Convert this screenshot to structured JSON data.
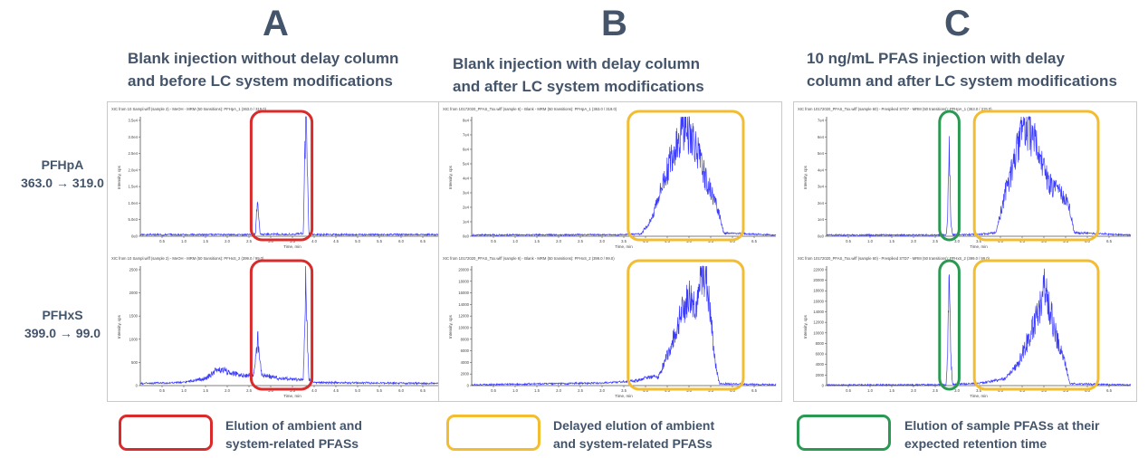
{
  "panels": [
    {
      "letter": "A",
      "heading": "Blank injection without delay column\nand before LC system modifications",
      "charts": [
        {
          "title": "XIC from 10 Sampl.wiff (sample 2) - MeOH - MRM (50 transitions): PFHpA_1 (363.0 / 319.0)",
          "ylabel": "Intensity, cps",
          "xlabel": "Time, min",
          "xticks": [
            "0.5",
            "1.0",
            "1.5",
            "2.0",
            "2.5",
            "3.0",
            "3.5",
            "4.0",
            "4.5",
            "5.0",
            "5.5",
            "6.0",
            "6.5"
          ],
          "yticks": [
            "0e0",
            "5.0e3",
            "1.0e4",
            "1.5e4",
            "2.0e4",
            "2.5e4",
            "3.0e4",
            "3.5e4"
          ]
        },
        {
          "title": "XIC from 10 Sampl.wiff (sample 2) - MeOH - MRM (50 transitions): PFHxS_2 (399.0 / 99.0)",
          "ylabel": "Intensity, cps",
          "xlabel": "Time, min",
          "xticks": [
            "0.5",
            "1.0",
            "1.5",
            "2.0",
            "2.5",
            "3.0",
            "3.5",
            "4.0",
            "4.5",
            "5.0",
            "5.5",
            "6.0",
            "6.5"
          ],
          "yticks": [
            "0",
            "500",
            "1000",
            "1500",
            "2000",
            "2500"
          ]
        }
      ]
    },
    {
      "letter": "B",
      "heading": "Blank injection with delay column\nand after LC system modifications",
      "charts": [
        {
          "title": "XIC from 10172020_PFAS_Tox.wiff (sample 6) - Blank - MRM (50 transitions): PFHpA_1 (363.0 / 319.0)",
          "ylabel": "Intensity, cps",
          "xlabel": "Time, min",
          "xticks": [
            "0.5",
            "1.0",
            "1.5",
            "2.0",
            "2.5",
            "3.0",
            "3.5",
            "4.0",
            "4.5",
            "5.0",
            "5.5",
            "6.0",
            "6.5"
          ],
          "yticks": [
            "0e0",
            "1e4",
            "2e4",
            "3e4",
            "4e4",
            "5e4",
            "6e4",
            "7e4",
            "8e4"
          ]
        },
        {
          "title": "XIC from 10172020_PFAS_Tox.wiff (sample 6) - Blank - MRM (50 transitions): PFHxS_2 (399.0 / 99.0)",
          "ylabel": "Intensity, cps",
          "xlabel": "Time, min",
          "xticks": [
            "0.5",
            "1.0",
            "1.5",
            "2.0",
            "2.5",
            "3.0",
            "3.5",
            "4.0",
            "4.5",
            "5.0",
            "5.5",
            "6.0",
            "6.5"
          ],
          "yticks": [
            "0",
            "2000",
            "4000",
            "6000",
            "8000",
            "10000",
            "12000",
            "14000",
            "16000",
            "18000",
            "20000"
          ]
        }
      ]
    },
    {
      "letter": "C",
      "heading": "10 ng/mL PFAS injection with delay\ncolumn and after LC system modifications",
      "charts": [
        {
          "title": "XIC from 10172020_PFAS_Tox.wiff (sample 60) - Prespiked STD7 - MRM (50 transitions): PFHpA_1 (363.0 / 319.0)",
          "ylabel": "Intensity, cps",
          "xlabel": "Time, min",
          "xticks": [
            "0.5",
            "1.0",
            "1.5",
            "2.0",
            "2.5",
            "3.0",
            "3.5",
            "4.0",
            "4.5",
            "5.0",
            "5.5",
            "6.0",
            "6.5"
          ],
          "yticks": [
            "0e0",
            "1e4",
            "2e4",
            "3e4",
            "4e4",
            "5e4",
            "6e4",
            "7e4"
          ]
        },
        {
          "title": "XIC from 10172020_PFAS_Tox.wiff (sample 60) - Prespiked STD7 - MRM (50 transitions): PFHxS_2 (399.0 / 99.0)",
          "ylabel": "Intensity, cps",
          "xlabel": "Time, min",
          "xticks": [
            "0.5",
            "1.0",
            "1.5",
            "2.0",
            "2.5",
            "3.0",
            "3.5",
            "4.0",
            "4.5",
            "5.0",
            "5.5",
            "6.0",
            "6.5"
          ],
          "yticks": [
            "0",
            "2000",
            "4000",
            "6000",
            "8000",
            "10000",
            "12000",
            "14000",
            "16000",
            "18000",
            "20000",
            "22000"
          ]
        }
      ]
    }
  ],
  "analytes": [
    {
      "name": "PFHpA",
      "transition": "363.0 → 319.0"
    },
    {
      "name": "PFHxS",
      "transition": "399.0 → 99.0"
    }
  ],
  "legend": [
    {
      "label": "Elution of ambient and\nsystem-related PFASs",
      "color": "#d92b2b"
    },
    {
      "label": "Delayed elution of ambient\nand system-related PFASs",
      "color": "#f2bd31"
    },
    {
      "label": "Elution of sample PFASs at their\nexpected retention time",
      "color": "#2a9a52"
    }
  ],
  "colors": {
    "trace": "#3b3bff",
    "text": "#44546a",
    "red": "#d92b2b",
    "yellow": "#f2bd31",
    "green": "#2a9a52"
  },
  "chart_data": [
    {
      "type": "line",
      "panel": "A",
      "analyte": "PFHpA",
      "xlabel": "Time, min",
      "ylabel": "Intensity, cps",
      "xlim": [
        0,
        7.0
      ],
      "ylim": [
        0,
        36000
      ],
      "x": [
        0.0,
        2.6,
        2.65,
        2.7,
        2.75,
        2.8,
        3.5,
        3.75,
        3.78,
        3.81,
        3.84,
        3.88,
        4.0,
        7.0
      ],
      "values": [
        400,
        400,
        800,
        12000,
        800,
        500,
        500,
        800,
        20000,
        34000,
        20000,
        800,
        400,
        400
      ],
      "highlights": [
        {
          "color": "red",
          "x_from": 2.55,
          "x_to": 3.95
        }
      ]
    },
    {
      "type": "line",
      "panel": "A",
      "analyte": "PFHxS",
      "xlabel": "Time, min",
      "ylabel": "Intensity, cps",
      "xlim": [
        0,
        7.0
      ],
      "ylim": [
        0,
        2600
      ],
      "x": [
        0.0,
        1.0,
        1.5,
        1.8,
        2.3,
        2.6,
        2.65,
        2.7,
        2.75,
        2.8,
        3.2,
        3.75,
        3.78,
        3.81,
        3.84,
        3.88,
        4.0,
        7.0
      ],
      "values": [
        40,
        60,
        150,
        350,
        220,
        220,
        500,
        1050,
        500,
        220,
        150,
        120,
        1200,
        2550,
        1200,
        120,
        60,
        40
      ],
      "highlights": [
        {
          "color": "red",
          "x_from": 2.55,
          "x_to": 3.95
        }
      ]
    },
    {
      "type": "line",
      "panel": "B",
      "analyte": "PFHpA",
      "xlabel": "Time, min",
      "ylabel": "Intensity, cps",
      "xlim": [
        0,
        7.0
      ],
      "ylim": [
        0,
        80000
      ],
      "x": [
        0.0,
        3.5,
        3.9,
        4.1,
        4.3,
        4.5,
        4.7,
        4.9,
        5.0,
        5.1,
        5.3,
        5.5,
        5.7,
        5.8,
        7.0
      ],
      "values": [
        600,
        900,
        1500,
        9000,
        26000,
        44000,
        62000,
        73000,
        70000,
        65000,
        45000,
        30000,
        15000,
        2000,
        600
      ],
      "highlights": [
        {
          "color": "yellow",
          "x_from": 3.6,
          "x_to": 6.25
        }
      ]
    },
    {
      "type": "line",
      "panel": "B",
      "analyte": "PFHxS",
      "xlabel": "Time, min",
      "ylabel": "Intensity, cps",
      "xlim": [
        0,
        7.0
      ],
      "ylim": [
        0,
        21000
      ],
      "x": [
        0.0,
        3.0,
        3.8,
        4.1,
        4.3,
        4.6,
        4.8,
        5.0,
        5.2,
        5.3,
        5.4,
        5.5,
        5.6,
        5.7,
        7.0
      ],
      "values": [
        100,
        400,
        800,
        1500,
        1400,
        7000,
        12000,
        16000,
        14000,
        20000,
        19000,
        12000,
        4000,
        300,
        100
      ],
      "highlights": [
        {
          "color": "yellow",
          "x_from": 3.6,
          "x_to": 6.25
        }
      ]
    },
    {
      "type": "line",
      "panel": "C",
      "analyte": "PFHpA",
      "xlabel": "Time, min",
      "ylabel": "Intensity, cps",
      "xlim": [
        0,
        7.0
      ],
      "ylim": [
        0,
        72000
      ],
      "x": [
        0.0,
        2.75,
        2.78,
        2.82,
        2.86,
        2.9,
        3.5,
        3.9,
        4.1,
        4.3,
        4.5,
        4.7,
        4.9,
        5.1,
        5.3,
        5.5,
        5.6,
        5.7,
        7.0
      ],
      "values": [
        500,
        600,
        8000,
        58000,
        8000,
        600,
        900,
        2000,
        25000,
        42000,
        65000,
        62000,
        48000,
        32000,
        27000,
        22000,
        16000,
        2000,
        500
      ],
      "highlights": [
        {
          "color": "green",
          "x_from": 2.6,
          "x_to": 3.05
        },
        {
          "color": "yellow",
          "x_from": 3.4,
          "x_to": 6.25
        }
      ]
    },
    {
      "type": "line",
      "panel": "C",
      "analyte": "PFHxS",
      "xlabel": "Time, min",
      "ylabel": "Intensity, cps",
      "xlim": [
        0,
        7.0
      ],
      "ylim": [
        0,
        23000
      ],
      "x": [
        0.0,
        2.75,
        2.78,
        2.82,
        2.86,
        2.9,
        3.5,
        4.1,
        4.4,
        4.7,
        4.9,
        5.0,
        5.1,
        5.3,
        5.5,
        5.6,
        7.0
      ],
      "values": [
        50,
        100,
        5000,
        22000,
        5000,
        150,
        400,
        1200,
        4000,
        10000,
        15000,
        19000,
        16000,
        9000,
        4000,
        300,
        50
      ],
      "highlights": [
        {
          "color": "green",
          "x_from": 2.6,
          "x_to": 3.05
        },
        {
          "color": "yellow",
          "x_from": 3.4,
          "x_to": 6.25
        }
      ]
    }
  ]
}
